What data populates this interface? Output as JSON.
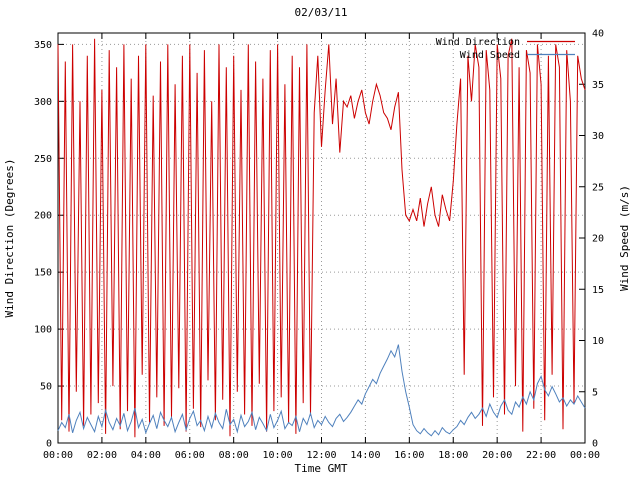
{
  "title": "02/03/11",
  "colors": {
    "direction": "#cc0000",
    "speed": "#4f81bd",
    "grid": "#9a9a9a",
    "frame": "#000000",
    "ylabel_left": "#cc0000",
    "ylabel_right": "#880000"
  },
  "chart_data": {
    "type": "line",
    "title": "02/03/11",
    "xlabel": "Time GMT",
    "ylabel_left": "Wind Direction (Degrees)",
    "ylabel_right": "Wind Speed (m/s)",
    "grid": true,
    "legend_position": "top-right",
    "x_tick_labels": [
      "00:00",
      "02:00",
      "04:00",
      "06:00",
      "08:00",
      "10:00",
      "12:00",
      "14:00",
      "16:00",
      "18:00",
      "20:00",
      "22:00",
      "00:00"
    ],
    "x_range_minutes": [
      0,
      1440
    ],
    "sample_step_minutes": 10,
    "y_left": {
      "range": [
        0,
        360
      ],
      "ticks": [
        0,
        50,
        100,
        150,
        200,
        250,
        300,
        350
      ]
    },
    "y_right": {
      "range": [
        0,
        40
      ],
      "ticks": [
        0,
        5,
        10,
        15,
        20,
        25,
        30,
        35,
        40
      ]
    },
    "series": [
      {
        "name": "Wind Direction",
        "axis": "left",
        "color": "#cc0000",
        "values": [
          350,
          20,
          335,
          10,
          350,
          45,
          300,
          15,
          340,
          25,
          355,
          35,
          310,
          8,
          345,
          50,
          330,
          12,
          350,
          28,
          320,
          5,
          340,
          60,
          350,
          18,
          305,
          40,
          335,
          15,
          350,
          22,
          315,
          48,
          340,
          10,
          350,
          30,
          325,
          14,
          345,
          55,
          300,
          20,
          350,
          38,
          330,
          6,
          340,
          45,
          310,
          25,
          350,
          15,
          335,
          52,
          320,
          10,
          345,
          28,
          350,
          40,
          315,
          18,
          340,
          8,
          330,
          35,
          350,
          24,
          290,
          340,
          260,
          310,
          350,
          280,
          320,
          255,
          300,
          295,
          305,
          285,
          300,
          310,
          290,
          280,
          300,
          315,
          305,
          290,
          285,
          275,
          295,
          308,
          240,
          200,
          195,
          205,
          195,
          215,
          190,
          210,
          225,
          200,
          190,
          218,
          205,
          195,
          230,
          280,
          320,
          60,
          340,
          300,
          350,
          330,
          15,
          345,
          310,
          40,
          350,
          320,
          25,
          340,
          355,
          50,
          330,
          10,
          345,
          325,
          30,
          350,
          315,
          20,
          340,
          60,
          350,
          330,
          12,
          345,
          300,
          35,
          340,
          320,
          310
        ]
      },
      {
        "name": "Wind Speed",
        "axis": "right",
        "color": "#4f81bd",
        "values": [
          1.2,
          2.0,
          1.5,
          2.8,
          1.0,
          2.2,
          3.0,
          1.4,
          2.5,
          1.8,
          1.1,
          2.6,
          1.6,
          3.2,
          2.0,
          1.3,
          2.4,
          1.7,
          2.9,
          1.2,
          2.1,
          3.4,
          1.5,
          2.3,
          1.0,
          1.9,
          2.7,
          1.4,
          3.0,
          2.2,
          1.6,
          2.5,
          1.1,
          2.0,
          2.8,
          1.3,
          2.4,
          3.1,
          1.7,
          2.2,
          1.2,
          2.6,
          1.5,
          2.9,
          2.0,
          1.4,
          3.3,
          1.8,
          2.3,
          1.1,
          2.7,
          1.6,
          2.1,
          3.0,
          1.3,
          2.5,
          1.9,
          1.2,
          2.8,
          1.5,
          2.2,
          3.1,
          1.4,
          2.0,
          1.7,
          2.6,
          1.1,
          2.4,
          1.8,
          2.9,
          1.5,
          2.2,
          1.8,
          2.6,
          2.0,
          1.6,
          2.4,
          2.8,
          2.1,
          2.5,
          3.0,
          3.6,
          4.2,
          3.8,
          4.8,
          5.5,
          6.2,
          5.8,
          6.8,
          7.5,
          8.2,
          9.0,
          8.4,
          9.6,
          7.0,
          5.0,
          3.5,
          1.8,
          1.2,
          0.9,
          1.4,
          1.0,
          0.7,
          1.2,
          0.8,
          1.5,
          1.1,
          0.9,
          1.3,
          1.6,
          2.2,
          1.8,
          2.5,
          3.0,
          2.4,
          2.8,
          3.4,
          2.6,
          3.8,
          3.0,
          2.5,
          3.6,
          4.2,
          3.2,
          2.8,
          4.0,
          3.5,
          4.5,
          3.8,
          5.0,
          4.2,
          5.8,
          6.5,
          5.2,
          4.6,
          5.5,
          4.8,
          4.0,
          4.4,
          3.6,
          4.2,
          3.8,
          4.6,
          4.0,
          3.4
        ]
      }
    ]
  }
}
